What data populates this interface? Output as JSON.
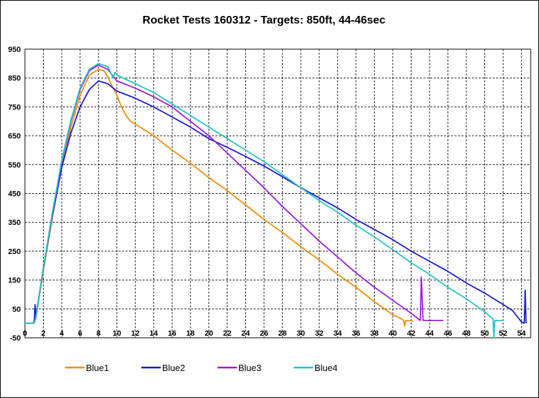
{
  "chart_data": {
    "type": "line",
    "title": "Rocket Tests 160312 - Targets: 850ft, 44-46sec",
    "xlabel": "",
    "ylabel": "",
    "xlim": [
      0,
      55
    ],
    "ylim": [
      -50,
      950
    ],
    "x_ticks": [
      0,
      2,
      4,
      6,
      8,
      10,
      12,
      14,
      16,
      18,
      20,
      22,
      24,
      26,
      28,
      30,
      32,
      34,
      36,
      38,
      40,
      42,
      44,
      46,
      48,
      50,
      52,
      54
    ],
    "y_ticks": [
      -50,
      50,
      150,
      250,
      350,
      450,
      550,
      650,
      750,
      850,
      950
    ],
    "grid": true,
    "legend_position": "bottom",
    "series": [
      {
        "name": "Blue1",
        "color": "#F28C00",
        "points": [
          [
            0,
            0
          ],
          [
            0.9,
            0
          ],
          [
            1.2,
            20
          ],
          [
            2,
            180
          ],
          [
            3,
            370
          ],
          [
            4,
            540
          ],
          [
            5,
            680
          ],
          [
            6,
            790
          ],
          [
            7,
            860
          ],
          [
            8,
            880
          ],
          [
            8.6,
            875
          ],
          [
            9,
            855
          ],
          [
            9.5,
            820
          ],
          [
            10,
            790
          ],
          [
            10.5,
            750
          ],
          [
            11,
            720
          ],
          [
            11.5,
            700
          ],
          [
            12,
            690
          ],
          [
            14,
            650
          ],
          [
            16,
            600
          ],
          [
            18,
            555
          ],
          [
            20,
            505
          ],
          [
            22,
            460
          ],
          [
            24,
            410
          ],
          [
            26,
            360
          ],
          [
            28,
            315
          ],
          [
            30,
            265
          ],
          [
            32,
            220
          ],
          [
            34,
            170
          ],
          [
            36,
            125
          ],
          [
            38,
            75
          ],
          [
            40,
            30
          ],
          [
            41,
            15
          ],
          [
            41.2,
            8
          ],
          [
            41.3,
            -10
          ],
          [
            41.4,
            10
          ],
          [
            42.2,
            8
          ]
        ]
      },
      {
        "name": "Blue2",
        "color": "#1A1ACC",
        "points": [
          [
            0,
            0
          ],
          [
            1,
            0
          ],
          [
            1.1,
            65
          ],
          [
            1.2,
            25
          ],
          [
            2,
            190
          ],
          [
            3,
            375
          ],
          [
            4,
            540
          ],
          [
            5,
            660
          ],
          [
            6,
            750
          ],
          [
            7,
            810
          ],
          [
            8,
            840
          ],
          [
            9,
            830
          ],
          [
            10,
            805
          ],
          [
            12,
            780
          ],
          [
            14,
            750
          ],
          [
            16,
            715
          ],
          [
            18,
            680
          ],
          [
            20,
            640
          ],
          [
            22,
            610
          ],
          [
            24,
            578
          ],
          [
            26,
            545
          ],
          [
            28,
            508
          ],
          [
            30,
            470
          ],
          [
            32,
            435
          ],
          [
            34,
            400
          ],
          [
            36,
            360
          ],
          [
            38,
            325
          ],
          [
            40,
            290
          ],
          [
            42,
            250
          ],
          [
            44,
            215
          ],
          [
            46,
            180
          ],
          [
            48,
            140
          ],
          [
            50,
            105
          ],
          [
            52,
            65
          ],
          [
            53,
            45
          ],
          [
            54,
            5
          ],
          [
            54.3,
            0
          ],
          [
            54.4,
            115
          ],
          [
            54.5,
            0
          ]
        ]
      },
      {
        "name": "Blue3",
        "color": "#9A1ADC",
        "points": [
          [
            0,
            0
          ],
          [
            1,
            0
          ],
          [
            1.2,
            20
          ],
          [
            2,
            190
          ],
          [
            3,
            385
          ],
          [
            4,
            560
          ],
          [
            5,
            700
          ],
          [
            6,
            810
          ],
          [
            7,
            875
          ],
          [
            8,
            895
          ],
          [
            9,
            880
          ],
          [
            9.5,
            860
          ],
          [
            10,
            840
          ],
          [
            12,
            815
          ],
          [
            14,
            785
          ],
          [
            16,
            750
          ],
          [
            18,
            700
          ],
          [
            20,
            650
          ],
          [
            22,
            590
          ],
          [
            24,
            530
          ],
          [
            26,
            470
          ],
          [
            28,
            405
          ],
          [
            30,
            345
          ],
          [
            32,
            285
          ],
          [
            34,
            230
          ],
          [
            36,
            175
          ],
          [
            38,
            125
          ],
          [
            40,
            80
          ],
          [
            42,
            35
          ],
          [
            43,
            10
          ],
          [
            43.1,
            160
          ],
          [
            43.3,
            10
          ],
          [
            45.5,
            10
          ]
        ]
      },
      {
        "name": "Blue4",
        "color": "#20C4C4",
        "points": [
          [
            0,
            0
          ],
          [
            1,
            0
          ],
          [
            1.2,
            20
          ],
          [
            2,
            190
          ],
          [
            3,
            385
          ],
          [
            4,
            565
          ],
          [
            5,
            705
          ],
          [
            6,
            815
          ],
          [
            7,
            880
          ],
          [
            8,
            900
          ],
          [
            9,
            890
          ],
          [
            9.6,
            850
          ],
          [
            9.8,
            870
          ],
          [
            10,
            860
          ],
          [
            12,
            830
          ],
          [
            14,
            800
          ],
          [
            16,
            760
          ],
          [
            18,
            720
          ],
          [
            20,
            680
          ],
          [
            22,
            640
          ],
          [
            24,
            600
          ],
          [
            26,
            560
          ],
          [
            28,
            515
          ],
          [
            30,
            470
          ],
          [
            32,
            425
          ],
          [
            34,
            385
          ],
          [
            36,
            340
          ],
          [
            38,
            300
          ],
          [
            40,
            255
          ],
          [
            42,
            210
          ],
          [
            44,
            170
          ],
          [
            46,
            125
          ],
          [
            48,
            85
          ],
          [
            50,
            40
          ],
          [
            50.9,
            15
          ],
          [
            51,
            -50
          ],
          [
            51.1,
            10
          ],
          [
            52,
            10
          ]
        ]
      }
    ]
  }
}
